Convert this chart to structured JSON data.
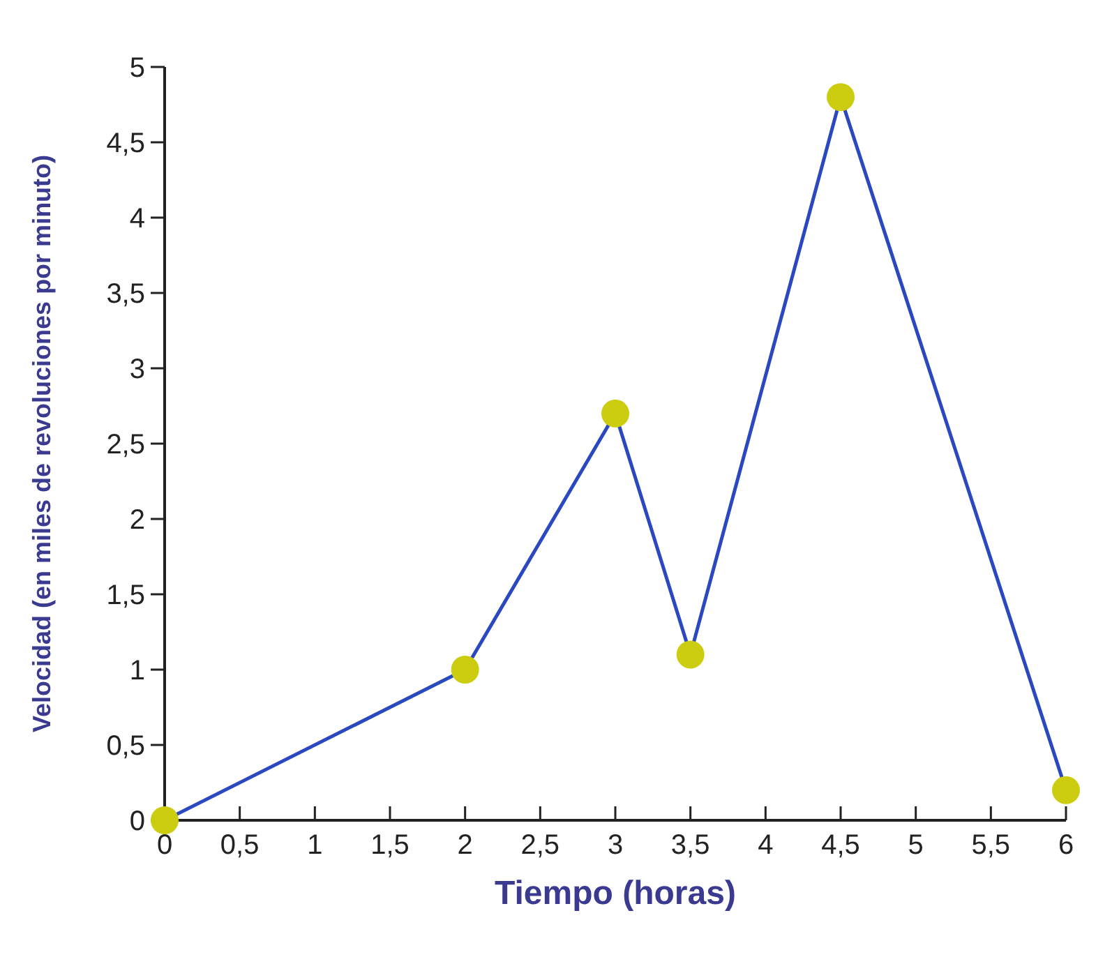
{
  "chart_data": {
    "type": "line",
    "xlabel": "Tiempo (horas)",
    "ylabel": "Velocidad (en miles de revoluciones por minuto)",
    "x": [
      0,
      2,
      3,
      3.5,
      4.5,
      6
    ],
    "series": [
      {
        "color": "#2a48c0",
        "values": [
          0,
          1,
          2.7,
          1.1,
          4.8,
          0.2
        ]
      }
    ],
    "marker": "circle",
    "line_style": "solid",
    "grid": false,
    "xlim": [
      0,
      6
    ],
    "ylim": [
      0,
      5
    ],
    "xticks": [
      0,
      {
        "value": 0.5,
        "label": "0,5"
      },
      1,
      {
        "value": 1.5,
        "label": "1,5"
      },
      2,
      {
        "value": 2.5,
        "label": "2,5"
      },
      3,
      {
        "value": 3.5,
        "label": "3,5"
      },
      4,
      {
        "value": 4.5,
        "label": "4,5"
      },
      5,
      {
        "value": 5.5,
        "label": "5,5"
      },
      6
    ],
    "yticks": [
      0,
      {
        "value": 0.5,
        "label": "0,5"
      },
      1,
      {
        "value": 1.5,
        "label": "1,5"
      },
      2,
      {
        "value": 2.5,
        "label": "2,5"
      },
      3,
      {
        "value": 3.5,
        "label": "3,5"
      },
      4,
      {
        "value": 4.5,
        "label": "4,5"
      },
      5
    ]
  }
}
